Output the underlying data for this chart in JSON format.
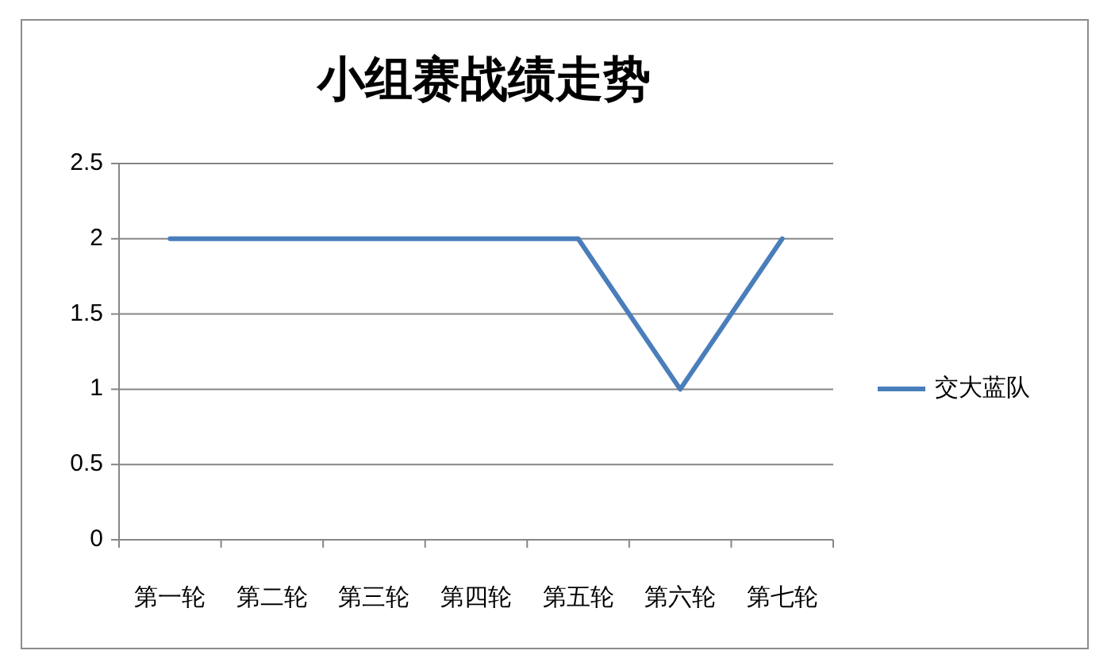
{
  "chart_data": {
    "type": "line",
    "title": "小组赛战绩走势",
    "categories": [
      "第一轮",
      "第二轮",
      "第三轮",
      "第四轮",
      "第五轮",
      "第六轮",
      "第七轮"
    ],
    "series": [
      {
        "name": "交大蓝队",
        "color": "#4a7ebb",
        "values": [
          2,
          2,
          2,
          2,
          2,
          1,
          2
        ]
      }
    ],
    "ylim": [
      0,
      2.5
    ],
    "yticks": [
      0,
      0.5,
      1,
      1.5,
      2,
      2.5
    ],
    "grid": "y",
    "legend": "right"
  }
}
